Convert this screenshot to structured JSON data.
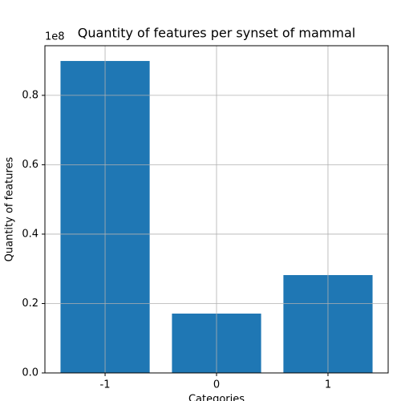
{
  "chart_data": {
    "type": "bar",
    "title": "Quantity of features per synset of mammal",
    "x_label": "Categories",
    "y_label": "Quantity of features",
    "y_offset_label": "1e8",
    "categories": [
      "-1",
      "0",
      "1"
    ],
    "values": [
      89900000,
      17100000,
      28200000
    ],
    "color": "#1f77b4",
    "ylim": [
      0,
      94300000
    ],
    "yticks": [
      {
        "value": 0,
        "label": "0.0"
      },
      {
        "value": 20000000,
        "label": "0.2"
      },
      {
        "value": 40000000,
        "label": "0.4"
      },
      {
        "value": 60000000,
        "label": "0.6"
      },
      {
        "value": 80000000,
        "label": "0.8"
      }
    ],
    "grid": true
  }
}
